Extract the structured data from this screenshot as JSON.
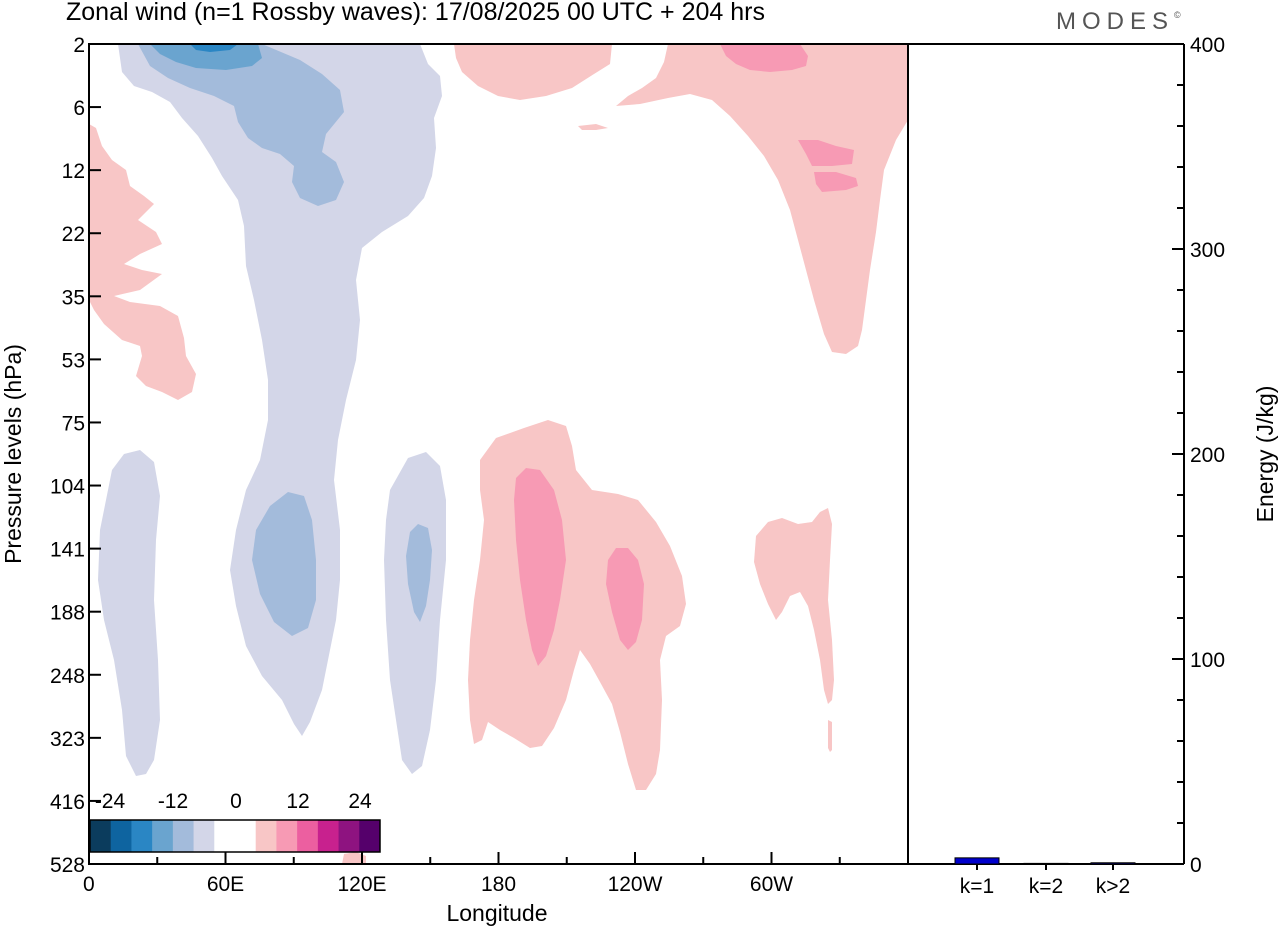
{
  "header": {
    "title": "Zonal wind (n=1 Rossby waves):  17/08/2025  00 UTC  + 204 hrs",
    "brand": "MODES"
  },
  "chart_data": [
    {
      "type": "heatmap",
      "title": "Zonal wind (n=1 Rossby waves):  17/08/2025  00 UTC  + 204 hrs",
      "xlabel": "Longitude",
      "ylabel": "Pressure levels (hPa)",
      "x_ticks": [
        "0",
        "60E",
        "120E",
        "180",
        "120W",
        "60W"
      ],
      "y_ticks": [
        "2",
        "6",
        "12",
        "22",
        "35",
        "53",
        "75",
        "104",
        "141",
        "188",
        "248",
        "323",
        "416",
        "528"
      ],
      "colorbar": {
        "labels": [
          "-24",
          "-12",
          "0",
          "12",
          "24"
        ],
        "colors": [
          "#0b3c5d",
          "#0e64a0",
          "#2a86c4",
          "#6aa4cf",
          "#a3bbdb",
          "#d3d6e8",
          "#ffffff",
          "#ffffff",
          "#f8c6c6",
          "#f79ab4",
          "#ec5fa0",
          "#c8218e",
          "#8e1380",
          "#55006b"
        ]
      },
      "regions": [
        {
          "sign": "negative",
          "level": 1,
          "desc": "lavender band 0-130E, 2-470 hPa"
        },
        {
          "sign": "negative",
          "level": 2,
          "desc": "blue core 20-110E near top"
        },
        {
          "sign": "negative",
          "level": 3,
          "desc": "dark blue core 25-60E at 2 hPa"
        },
        {
          "sign": "positive",
          "level": 1,
          "desc": "pink regions near 180-120W 100-350 hPa and 60W-30W upper levels"
        },
        {
          "sign": "positive",
          "level": 2,
          "desc": "deeper pink cores near 165W and 130W"
        }
      ]
    },
    {
      "type": "bar",
      "categories": [
        "k=1",
        "k=2",
        "k>2"
      ],
      "values": [
        3,
        0.3,
        0.6
      ],
      "ylabel": "Energy (J/kg)",
      "ylim": [
        0,
        400
      ],
      "y_ticks": [
        "0",
        "100",
        "200",
        "300",
        "400"
      ],
      "bar_color": "#0000cc"
    }
  ]
}
